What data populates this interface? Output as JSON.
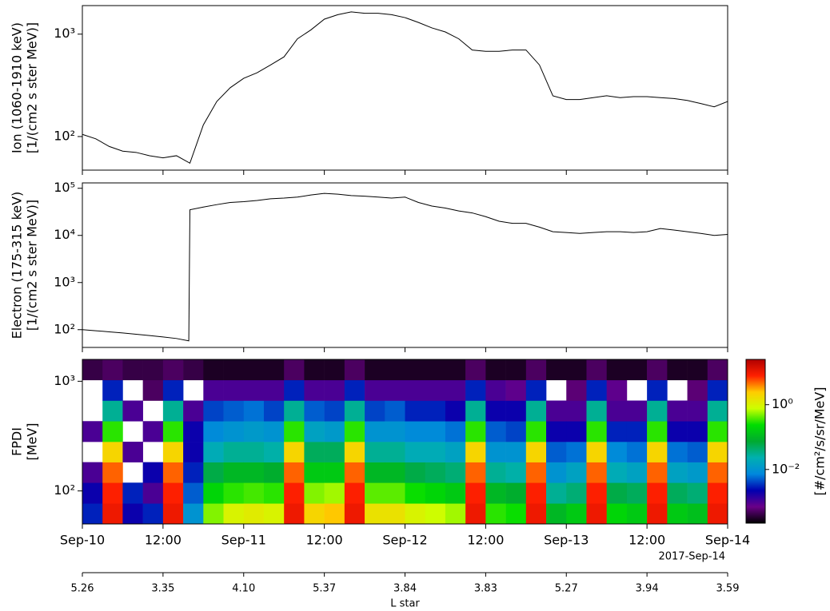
{
  "chart_data": [
    {
      "type": "line",
      "ylabel": [
        "Ion (1060-1910 keV)",
        "[1/(cm2 s ster MeV)]"
      ],
      "log_scale": true,
      "color": "#000000",
      "xlim": [
        "2017-09-10 00:00",
        "2017-09-14 00:00"
      ],
      "ylim": [
        47,
        1900
      ],
      "yticks": [
        {
          "value": 100,
          "label": "10²"
        },
        {
          "value": 1000,
          "label": "10³"
        }
      ],
      "x": [
        "2017-09-10 00:00",
        "2017-09-10 02:00",
        "2017-09-10 04:00",
        "2017-09-10 06:00",
        "2017-09-10 08:00",
        "2017-09-10 10:00",
        "2017-09-10 12:00",
        "2017-09-10 14:00",
        "2017-09-10 16:00",
        "2017-09-10 18:00",
        "2017-09-10 20:00",
        "2017-09-10 22:00",
        "2017-09-11 00:00",
        "2017-09-11 02:00",
        "2017-09-11 04:00",
        "2017-09-11 06:00",
        "2017-09-11 08:00",
        "2017-09-11 10:00",
        "2017-09-11 12:00",
        "2017-09-11 14:00",
        "2017-09-11 16:00",
        "2017-09-11 18:00",
        "2017-09-11 20:00",
        "2017-09-11 22:00",
        "2017-09-12 00:00",
        "2017-09-12 02:00",
        "2017-09-12 04:00",
        "2017-09-12 06:00",
        "2017-09-12 08:00",
        "2017-09-12 10:00",
        "2017-09-12 12:00",
        "2017-09-12 14:00",
        "2017-09-12 16:00",
        "2017-09-12 18:00",
        "2017-09-12 20:00",
        "2017-09-12 22:00",
        "2017-09-13 00:00",
        "2017-09-13 02:00",
        "2017-09-13 04:00",
        "2017-09-13 06:00",
        "2017-09-13 08:00",
        "2017-09-13 10:00",
        "2017-09-13 12:00",
        "2017-09-13 14:00",
        "2017-09-13 16:00",
        "2017-09-13 18:00",
        "2017-09-13 20:00",
        "2017-09-13 22:00",
        "2017-09-14 00:00"
      ],
      "values": [
        105,
        95,
        80,
        72,
        70,
        65,
        62,
        65,
        55,
        130,
        220,
        300,
        370,
        420,
        500,
        600,
        900,
        1100,
        1400,
        1550,
        1650,
        1600,
        1600,
        1550,
        1450,
        1300,
        1150,
        1050,
        900,
        700,
        680,
        680,
        700,
        700,
        500,
        250,
        230,
        230,
        240,
        250,
        240,
        245,
        245,
        240,
        235,
        225,
        210,
        195,
        220
      ]
    },
    {
      "type": "line",
      "ylabel": [
        "Electron (175-315 keV)",
        "[1/(cm2 s ster MeV)]"
      ],
      "log_scale": true,
      "color": "#000000",
      "xlim": [
        "2017-09-10 00:00",
        "2017-09-14 00:00"
      ],
      "ylim": [
        42,
        130000
      ],
      "yticks": [
        {
          "value": 100,
          "label": "10²"
        },
        {
          "value": 1000,
          "label": "10³"
        },
        {
          "value": 10000,
          "label": "10⁴"
        },
        {
          "value": 100000,
          "label": "10⁵"
        }
      ],
      "x": [
        "2017-09-10 00:00",
        "2017-09-10 02:00",
        "2017-09-10 04:00",
        "2017-09-10 06:00",
        "2017-09-10 08:00",
        "2017-09-10 10:00",
        "2017-09-10 12:00",
        "2017-09-10 14:00",
        "2017-09-10 15:50",
        "2017-09-10 16:00",
        "2017-09-10 18:00",
        "2017-09-10 20:00",
        "2017-09-10 22:00",
        "2017-09-11 00:00",
        "2017-09-11 02:00",
        "2017-09-11 04:00",
        "2017-09-11 06:00",
        "2017-09-11 08:00",
        "2017-09-11 10:00",
        "2017-09-11 12:00",
        "2017-09-11 14:00",
        "2017-09-11 16:00",
        "2017-09-11 18:00",
        "2017-09-11 20:00",
        "2017-09-11 22:00",
        "2017-09-12 00:00",
        "2017-09-12 02:00",
        "2017-09-12 04:00",
        "2017-09-12 06:00",
        "2017-09-12 08:00",
        "2017-09-12 10:00",
        "2017-09-12 12:00",
        "2017-09-12 14:00",
        "2017-09-12 16:00",
        "2017-09-12 18:00",
        "2017-09-12 20:00",
        "2017-09-12 22:00",
        "2017-09-13 00:00",
        "2017-09-13 02:00",
        "2017-09-13 04:00",
        "2017-09-13 06:00",
        "2017-09-13 08:00",
        "2017-09-13 10:00",
        "2017-09-13 12:00",
        "2017-09-13 14:00",
        "2017-09-13 16:00",
        "2017-09-13 18:00",
        "2017-09-13 20:00",
        "2017-09-13 22:00",
        "2017-09-14 00:00"
      ],
      "values": [
        100,
        95,
        90,
        85,
        80,
        75,
        70,
        65,
        58,
        35000,
        40000,
        45000,
        50000,
        52000,
        55000,
        60000,
        62000,
        65000,
        72000,
        78000,
        75000,
        70000,
        68000,
        65000,
        62000,
        65000,
        50000,
        42000,
        38000,
        33000,
        30000,
        25000,
        20000,
        18000,
        18000,
        15000,
        12000,
        11500,
        11000,
        11500,
        12000,
        12000,
        11500,
        12000,
        14000,
        13000,
        12000,
        11000,
        10000,
        10500
      ]
    },
    {
      "type": "heatmap",
      "ylabel": [
        "FPDI",
        "[MeV]"
      ],
      "log_scale": true,
      "xlim": [
        "2017-09-10 00:00",
        "2017-09-14 00:00"
      ],
      "xticks": [
        {
          "value": "2017-09-10 00:00",
          "label": "Sep-10"
        },
        {
          "value": "2017-09-10 12:00",
          "label": "12:00"
        },
        {
          "value": "2017-09-11 00:00",
          "label": "Sep-11"
        },
        {
          "value": "2017-09-11 12:00",
          "label": "12:00"
        },
        {
          "value": "2017-09-12 00:00",
          "label": "Sep-12"
        },
        {
          "value": "2017-09-12 12:00",
          "label": "12:00"
        },
        {
          "value": "2017-09-13 00:00",
          "label": "Sep-13"
        },
        {
          "value": "2017-09-13 12:00",
          "label": "12:00"
        },
        {
          "value": "2017-09-14 00:00",
          "label": "Sep-14"
        }
      ],
      "date_label": "2017-Sep-14",
      "x2label": "L star",
      "x2ticks": [
        5.26,
        3.35,
        {
          "value": 4.1,
          "label": "4.10"
        },
        5.37,
        3.84,
        3.83,
        5.27,
        3.94,
        3.59
      ],
      "ylim": [
        50,
        1582
      ],
      "yticks": [
        {
          "value": 100,
          "label": "10²"
        },
        {
          "value": 1000,
          "label": "10³"
        }
      ],
      "x_bins": [
        "2017-09-10 00:00",
        "2017-09-10 03:00",
        "2017-09-10 06:00",
        "2017-09-10 09:00",
        "2017-09-10 12:00",
        "2017-09-10 15:00",
        "2017-09-10 18:00",
        "2017-09-10 21:00",
        "2017-09-11 00:00",
        "2017-09-11 03:00",
        "2017-09-11 06:00",
        "2017-09-11 09:00",
        "2017-09-11 12:00",
        "2017-09-11 15:00",
        "2017-09-11 18:00",
        "2017-09-11 21:00",
        "2017-09-12 00:00",
        "2017-09-12 03:00",
        "2017-09-12 06:00",
        "2017-09-12 09:00",
        "2017-09-12 12:00",
        "2017-09-12 15:00",
        "2017-09-12 18:00",
        "2017-09-12 21:00",
        "2017-09-13 00:00",
        "2017-09-13 03:00",
        "2017-09-13 06:00",
        "2017-09-13 09:00",
        "2017-09-13 12:00",
        "2017-09-13 15:00",
        "2017-09-13 18:00",
        "2017-09-13 21:00",
        "2017-09-14 00:00"
      ],
      "y_bins": [
        50,
        77,
        119,
        183,
        281,
        433,
        667,
        1027,
        1582
      ],
      "z": [
        [
          0.003,
          0.002,
          0.001,
          null,
          0.001,
          null,
          null,
          0.0004
        ],
        [
          10,
          8,
          5,
          2,
          0.3,
          0.03,
          0.003,
          0.0005
        ],
        [
          0.002,
          0.003,
          null,
          0.001,
          null,
          0.001,
          null,
          0.0004
        ],
        [
          0.003,
          0.001,
          0.002,
          null,
          0.001,
          null,
          0.0005,
          0.0004
        ],
        [
          10,
          8,
          5,
          2,
          0.3,
          0.03,
          0.003,
          0.0005
        ],
        [
          0.01,
          0.005,
          0.003,
          0.002,
          0.002,
          0.001,
          null,
          0.0004
        ],
        [
          0.5,
          0.2,
          0.06,
          0.02,
          0.008,
          0.004,
          0.001,
          0.0003
        ],
        [
          1,
          0.3,
          0.1,
          0.03,
          0.01,
          0.005,
          0.001,
          0.0003
        ],
        [
          1.2,
          0.35,
          0.1,
          0.03,
          0.012,
          0.006,
          0.001,
          0.0003
        ],
        [
          1,
          0.3,
          0.08,
          0.025,
          0.01,
          0.004,
          0.001,
          0.0003
        ],
        [
          10,
          8,
          5,
          2,
          0.3,
          0.03,
          0.003,
          0.0005
        ],
        [
          2,
          0.5,
          0.15,
          0.05,
          0.015,
          0.005,
          0.001,
          0.0003
        ],
        [
          2.5,
          0.6,
          0.15,
          0.05,
          0.012,
          0.004,
          0.001,
          0.0003
        ],
        [
          10,
          8,
          5,
          2,
          0.3,
          0.03,
          0.003,
          0.0005
        ],
        [
          1.5,
          0.4,
          0.1,
          0.03,
          0.01,
          0.004,
          0.001,
          0.0003
        ],
        [
          1.5,
          0.4,
          0.1,
          0.03,
          0.01,
          0.005,
          0.001,
          0.0003
        ],
        [
          1,
          0.25,
          0.06,
          0.02,
          0.008,
          0.003,
          0.001,
          0.0003
        ],
        [
          0.8,
          0.2,
          0.05,
          0.02,
          0.008,
          0.003,
          0.001,
          0.0003
        ],
        [
          0.6,
          0.15,
          0.04,
          0.015,
          0.006,
          0.002,
          0.001,
          0.0003
        ],
        [
          10,
          8,
          5,
          2,
          0.3,
          0.03,
          0.003,
          0.0005
        ],
        [
          0.3,
          0.1,
          0.03,
          0.01,
          0.005,
          0.002,
          0.001,
          0.0003
        ],
        [
          0.25,
          0.08,
          0.025,
          0.01,
          0.004,
          0.002,
          0.0008,
          0.0003
        ],
        [
          10,
          8,
          5,
          2,
          0.3,
          0.03,
          0.003,
          0.0005
        ],
        [
          0.1,
          0.03,
          0.01,
          0.005,
          0.002,
          0.001,
          null,
          0.0003
        ],
        [
          0.15,
          0.04,
          0.015,
          0.006,
          0.002,
          0.001,
          0.0006,
          0.0003
        ],
        [
          10,
          8,
          5,
          2,
          0.3,
          0.03,
          0.003,
          0.0005
        ],
        [
          0.2,
          0.06,
          0.02,
          0.008,
          0.003,
          0.001,
          0.0008,
          0.0003
        ],
        [
          0.15,
          0.05,
          0.015,
          0.006,
          0.003,
          0.001,
          null,
          0.0003
        ],
        [
          10,
          8,
          5,
          2,
          0.3,
          0.03,
          0.003,
          0.0005
        ],
        [
          0.15,
          0.05,
          0.015,
          0.006,
          0.002,
          0.001,
          null,
          0.0003
        ],
        [
          0.12,
          0.04,
          0.012,
          0.005,
          0.002,
          0.001,
          0.0006,
          0.0003
        ],
        [
          10,
          8,
          5,
          2,
          0.3,
          0.03,
          0.003,
          0.0005
        ]
      ],
      "colorbar": {
        "label": "[#/cm²/s/sr/MeV]",
        "zlim": [
          0.00022,
          25
        ],
        "log_scale": true,
        "ticks": [
          {
            "value": 0.01,
            "label": "10⁻²"
          },
          {
            "value": 1,
            "label": "10⁰"
          }
        ],
        "colormap": [
          "#000000",
          "#6a0088",
          "#0000b0",
          "#0088dd",
          "#00b0b0",
          "#00aa30",
          "#00dd00",
          "#ccff00",
          "#ffcc00",
          "#ff2000",
          "#b00000"
        ]
      }
    }
  ]
}
